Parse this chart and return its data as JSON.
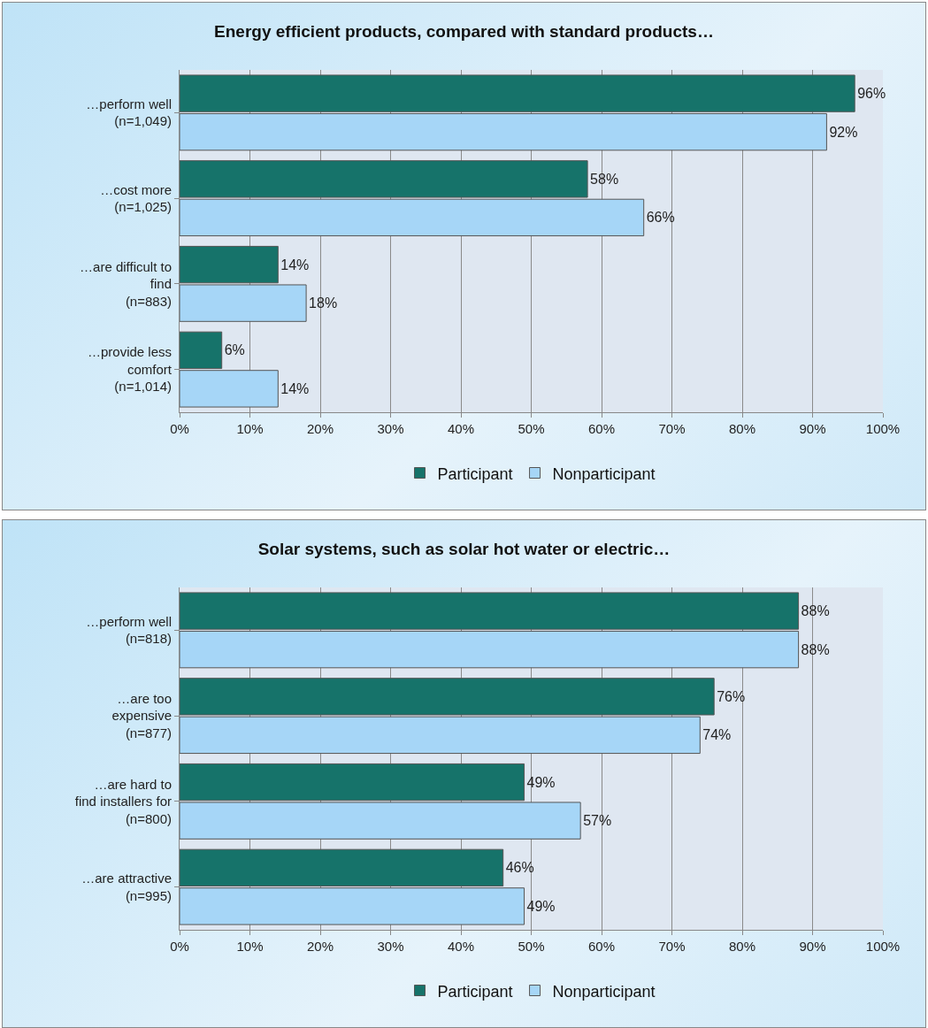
{
  "chart_data": [
    {
      "type": "bar",
      "orientation": "horizontal",
      "title": "Energy efficient products, compared with standard products…",
      "categories": [
        "…perform well\n(n=1,049)",
        "…cost more\n(n=1,025)",
        "…are difficult to\nfind\n(n=883)",
        "…provide less\ncomfort\n(n=1,014)"
      ],
      "series": [
        {
          "name": "Participant",
          "color": "#16736a",
          "values": [
            96,
            58,
            14,
            6
          ],
          "value_labels": [
            "96%",
            "58%",
            "14%",
            "6%"
          ]
        },
        {
          "name": "Nonparticipant",
          "color": "#a6d6f7",
          "values": [
            92,
            66,
            18,
            14
          ],
          "value_labels": [
            "92%",
            "66%",
            "18%",
            "14%"
          ]
        }
      ],
      "xlim": [
        0,
        100
      ],
      "xticks": [
        {
          "value": 0,
          "label": "0%"
        },
        {
          "value": 10,
          "label": "10%"
        },
        {
          "value": 20,
          "label": "20%"
        },
        {
          "value": 30,
          "label": "30%"
        },
        {
          "value": 40,
          "label": "40%"
        },
        {
          "value": 50,
          "label": "50%"
        },
        {
          "value": 60,
          "label": "60%"
        },
        {
          "value": 70,
          "label": "70%"
        },
        {
          "value": 80,
          "label": "80%"
        },
        {
          "value": 90,
          "label": "90%"
        },
        {
          "value": 100,
          "label": "100%"
        }
      ],
      "grid": "x",
      "legend": "bottom"
    },
    {
      "type": "bar",
      "orientation": "horizontal",
      "title": "Solar systems, such as solar hot water or electric…",
      "categories": [
        "…perform well\n(n=818)",
        "…are too\nexpensive\n(n=877)",
        "…are hard to\nfind installers for\n(n=800)",
        "…are attractive\n(n=995)"
      ],
      "series": [
        {
          "name": "Participant",
          "color": "#16736a",
          "values": [
            88,
            76,
            49,
            46
          ],
          "value_labels": [
            "88%",
            "76%",
            "49%",
            "46%"
          ]
        },
        {
          "name": "Nonparticipant",
          "color": "#a6d6f7",
          "values": [
            88,
            74,
            57,
            49
          ],
          "value_labels": [
            "88%",
            "74%",
            "57%",
            "49%"
          ]
        }
      ],
      "xlim": [
        0,
        100
      ],
      "xticks": [
        {
          "value": 0,
          "label": "0%"
        },
        {
          "value": 10,
          "label": "10%"
        },
        {
          "value": 20,
          "label": "20%"
        },
        {
          "value": 30,
          "label": "30%"
        },
        {
          "value": 40,
          "label": "40%"
        },
        {
          "value": 50,
          "label": "50%"
        },
        {
          "value": 60,
          "label": "60%"
        },
        {
          "value": 70,
          "label": "70%"
        },
        {
          "value": 80,
          "label": "80%"
        },
        {
          "value": 90,
          "label": "90%"
        },
        {
          "value": 100,
          "label": "100%"
        }
      ],
      "grid": "x",
      "legend": "bottom"
    }
  ]
}
